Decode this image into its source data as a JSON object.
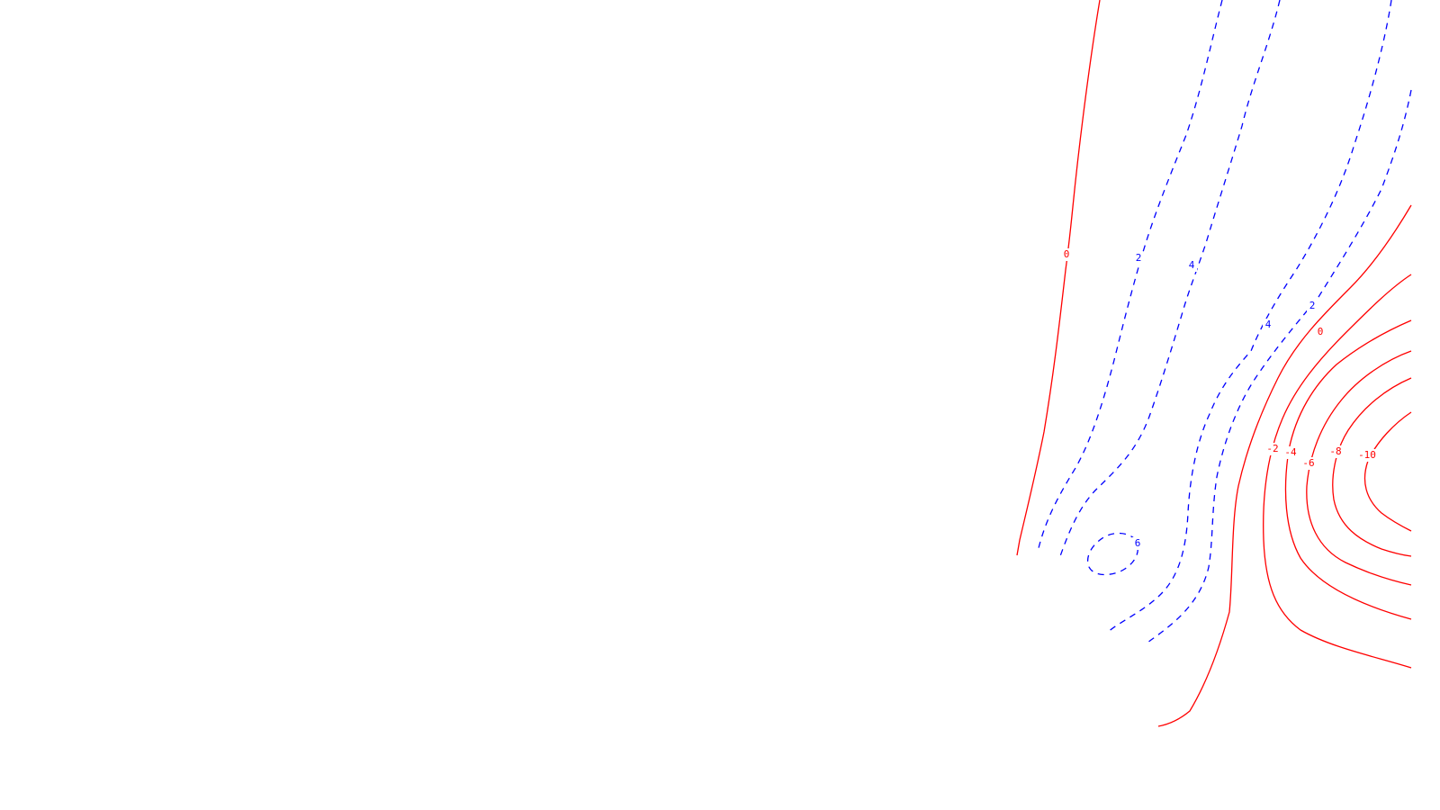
{
  "map": {
    "colors": {
      "background": "#ffffff",
      "solid_contours": "#ff0000",
      "dashed_contours": "#0000ff"
    },
    "contour_labels": {
      "zero_west": "0",
      "dashed_2_west": "2",
      "dashed_4_north": "4",
      "dashed_4_mid": "4",
      "dashed_2_east": "2",
      "zero_east": "0",
      "minus_2": "-2",
      "minus_4": "-4",
      "minus_6": "-6",
      "minus_8": "-8",
      "minus_10": "-10",
      "dashed_6_loop": "6"
    }
  }
}
